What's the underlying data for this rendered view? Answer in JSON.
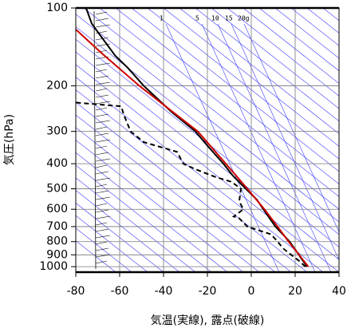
{
  "chart_data": {
    "type": "skewt",
    "x_label": "気温(実線), 露点(破線)",
    "y_label": "気圧(hPa)",
    "xlim": [
      -80,
      40
    ],
    "xticks": [
      -80,
      -60,
      -40,
      -20,
      0,
      20,
      40
    ],
    "ylim": [
      100,
      1050
    ],
    "yticks": [
      100,
      200,
      300,
      400,
      500,
      600,
      700,
      800,
      900,
      1000
    ],
    "log_y": true,
    "grid": true,
    "mixing_ratio_labels": [
      "1",
      "5",
      "10",
      "15",
      "20g"
    ],
    "series": [
      {
        "color": "#000000",
        "dash": false,
        "x": [
          25.5,
          23,
          20.7,
          17.5,
          11,
          5.5,
          2.5,
          -2.5,
          -8.4,
          -12.7,
          -19.3,
          -25.5,
          -36.4,
          -49,
          -56.4,
          -62,
          -67.3,
          -72.7,
          -75.3
        ],
        "values": [
          1000,
          935,
          875,
          800,
          700,
          600,
          550,
          500,
          445,
          400,
          346,
          300,
          252,
          200,
          170,
          153,
          133,
          115,
          100
        ]
      },
      {
        "color": "#cc0000",
        "dash": false,
        "x": [
          26,
          21.8,
          17,
          12,
          6,
          -1.8,
          -11.6,
          -24.4,
          -51,
          -68,
          -80
        ],
        "values": [
          1000,
          900,
          800,
          700,
          600,
          500,
          400,
          300,
          200,
          150,
          121
        ]
      },
      {
        "color": "#000000",
        "dash": true,
        "x": [
          24.7,
          21.8,
          18.2,
          14.5,
          12,
          9,
          -1.8,
          -5.5,
          -8,
          -3.6,
          -5.5,
          -4.7,
          -9,
          -16.4,
          -25.5,
          -31,
          -33.8,
          -49,
          -55,
          -58,
          -59.3,
          -80
        ],
        "values": [
          1000,
          950,
          900,
          850,
          800,
          750,
          700,
          650,
          640,
          600,
          560,
          500,
          470,
          450,
          420,
          400,
          360,
          330,
          300,
          260,
          240,
          232
        ]
      }
    ]
  }
}
